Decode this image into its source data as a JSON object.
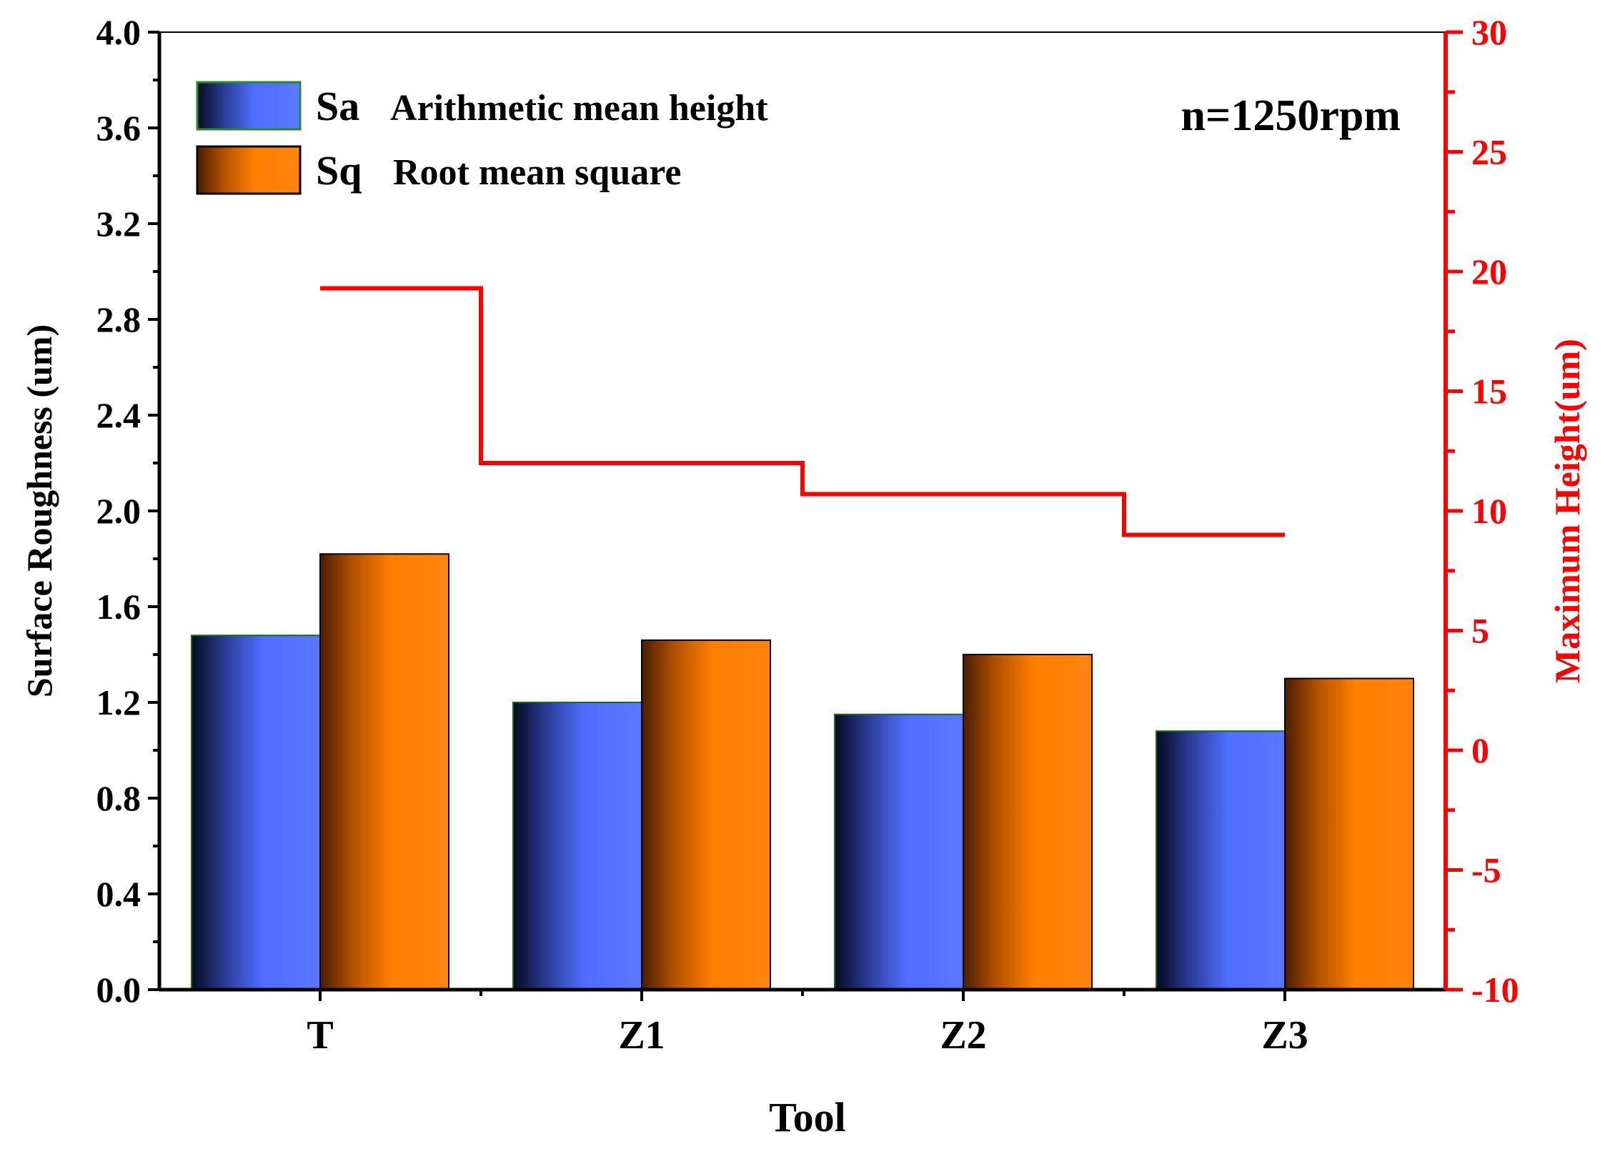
{
  "chart_data": {
    "type": "bar",
    "categories": [
      "T",
      "Z1",
      "Z2",
      "Z3"
    ],
    "series": [
      {
        "name": "Sa",
        "desc": "Arithmetic mean height",
        "values": [
          1.48,
          1.2,
          1.15,
          1.08
        ],
        "axis": "left"
      },
      {
        "name": "Sq",
        "desc": "Root mean square",
        "values": [
          1.82,
          1.46,
          1.4,
          1.3
        ],
        "axis": "left"
      },
      {
        "name": "Maximum Height",
        "type": "step-line",
        "values": [
          19.3,
          12.0,
          10.7,
          9.0
        ],
        "axis": "right",
        "color": "#ff0000"
      }
    ],
    "annotation": "n=1250rpm",
    "xlabel": "Tool",
    "ylabel": "Surface Roughness (um)",
    "y2label": "Maximum Height(um)",
    "ylim": [
      0,
      4.0
    ],
    "y2lim": [
      -10,
      30
    ],
    "yticks": [
      "0.0",
      "0.4",
      "0.8",
      "1.2",
      "1.6",
      "2.0",
      "2.4",
      "2.8",
      "3.2",
      "3.6",
      "4.0"
    ],
    "y2ticks": [
      "-10",
      "-5",
      "0",
      "5",
      "10",
      "15",
      "20",
      "25",
      "30"
    ],
    "legend_position": "top-left",
    "colors": {
      "sa": "#4f6dff",
      "sq": "#ff7f00",
      "line": "#ff0000",
      "axis": "#000000"
    }
  }
}
